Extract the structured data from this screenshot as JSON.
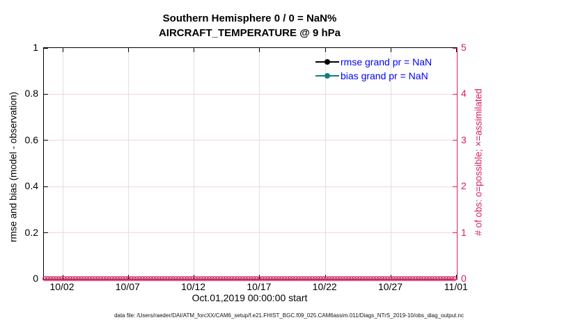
{
  "title": {
    "line1": "Southern Hemisphere 0 / 0 = NaN%",
    "line2": "AIRCRAFT_TEMPERATURE @ 9 hPa"
  },
  "chart_data": {
    "type": "line",
    "title": "Southern Hemisphere 0 / 0 = NaN% — AIRCRAFT_TEMPERATURE @ 9 hPa",
    "xlabel": "Oct.01,2019 00:00:00 start",
    "x_ticks": [
      "10/02",
      "10/07",
      "10/12",
      "10/17",
      "10/22",
      "10/27",
      "11/01"
    ],
    "x_range_days": [
      "10/01",
      "11/01"
    ],
    "left_axis": {
      "ylabel": "rmse and bias (model - observation)",
      "tick_labels": [
        "0",
        "0.2",
        "0.4",
        "0.6",
        "0.8",
        "1"
      ],
      "ylim": [
        0,
        1
      ],
      "color": "#000000"
    },
    "right_axis": {
      "ylabel": "# of obs: o=possible; ×=assimilated",
      "tick_labels": [
        "0",
        "1",
        "2",
        "3",
        "4",
        "5"
      ],
      "ylim": [
        0,
        5
      ],
      "color": "#d81e5b"
    },
    "grid": true,
    "legend_position": "upper-right-inside",
    "series": [
      {
        "name": "rmse grand pr = NaN",
        "axis": "left",
        "color": "#000000",
        "marker": "filled-circle",
        "values": null,
        "note": "all values NaN, no curve drawn"
      },
      {
        "name": "bias grand pr = NaN",
        "axis": "left",
        "color": "#12807a",
        "marker": "filled-circle",
        "values": null,
        "note": "all values NaN, no curve drawn"
      },
      {
        "name": "# of obs possible (o)",
        "axis": "right",
        "color": "#d81e5b",
        "marker": "o",
        "constant_value": 0,
        "extent": "every bin 10/01 through 11/01"
      },
      {
        "name": "# of obs assimilated (×)",
        "axis": "right",
        "color": "#d81e5b",
        "marker": "×",
        "constant_value": 0,
        "extent": "every bin 10/01 through 11/01"
      }
    ]
  },
  "legend": {
    "text_color": "#0000ff",
    "items": [
      {
        "label": "rmse grand pr = NaN",
        "color": "#000000"
      },
      {
        "label": "bias grand pr = NaN",
        "color": "#12807a"
      }
    ]
  },
  "footer": {
    "text": "data file: /Users/raeder/DAI/ATM_forcXX/CAM6_setup/f.e21.FHIST_BGC.f09_025.CAM6assim.011/Diags_NTrS_2019-10/obs_diag_output.nc"
  },
  "colors": {
    "accent_pink": "#d81e5b",
    "teal": "#12807a",
    "legend_blue": "#0000ff",
    "grid_gray": "#e2dfe0",
    "grid_pink": "#f3d5de",
    "black": "#000000"
  }
}
